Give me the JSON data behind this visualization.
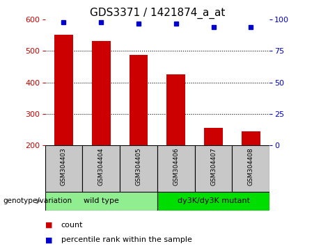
{
  "title": "GDS3371 / 1421874_a_at",
  "samples": [
    "GSM304403",
    "GSM304404",
    "GSM304405",
    "GSM304406",
    "GSM304407",
    "GSM304408"
  ],
  "bar_values": [
    553,
    533,
    487,
    425,
    255,
    245
  ],
  "percentile_values": [
    98,
    98,
    97,
    97,
    94,
    94
  ],
  "bar_bottom": 200,
  "ylim_left": [
    200,
    600
  ],
  "ylim_right": [
    0,
    100
  ],
  "yticks_left": [
    200,
    300,
    400,
    500,
    600
  ],
  "yticks_right": [
    0,
    25,
    50,
    75,
    100
  ],
  "bar_color": "#cc0000",
  "percentile_color": "#0000cc",
  "groups": [
    {
      "label": "wild type",
      "indices": [
        0,
        1,
        2
      ],
      "color": "#90ee90"
    },
    {
      "label": "dy3K/dy3K mutant",
      "indices": [
        3,
        4,
        5
      ],
      "color": "#00dd00"
    }
  ],
  "genotype_label": "genotype/variation",
  "legend_count": "count",
  "legend_pct": "percentile rank within the sample",
  "tick_area_bg": "#c8c8c8",
  "grid_color": "#000000",
  "title_fontsize": 11,
  "tick_fontsize": 8,
  "sample_fontsize": 6.5,
  "group_fontsize": 8,
  "legend_fontsize": 8
}
